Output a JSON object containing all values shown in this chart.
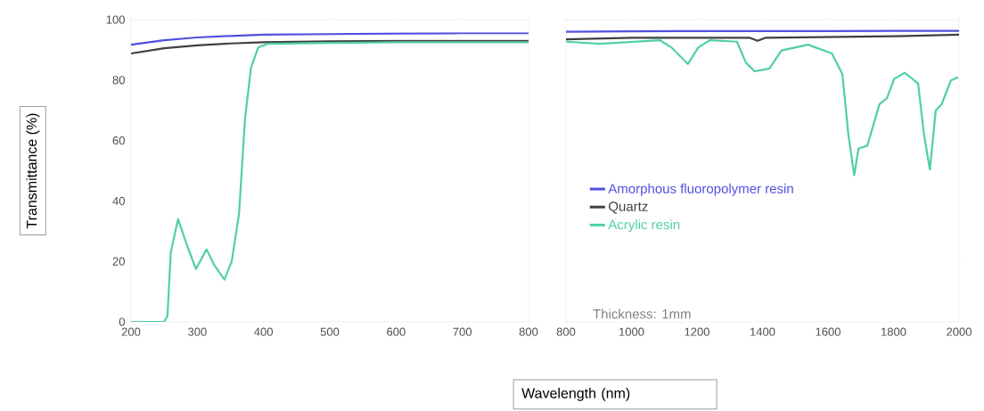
{
  "chart_data": [
    {
      "type": "line",
      "ylabel": "Transmittance (%)",
      "xlim": [
        200,
        800
      ],
      "ylim": [
        0,
        100
      ],
      "xticks": [
        200,
        300,
        400,
        500,
        600,
        700,
        800
      ],
      "yticks": [
        0,
        20,
        40,
        60,
        80,
        100
      ],
      "grid": false,
      "legend": false,
      "series": [
        {
          "color": "#5050e0",
          "x": [
            200,
            250,
            300,
            350,
            400,
            500,
            600,
            700,
            800
          ],
          "values": [
            91.7,
            93.2,
            94.1,
            94.6,
            95,
            95.2,
            95.4,
            95.5,
            95.5
          ]
        },
        {
          "color": "#404040",
          "x": [
            200,
            250,
            300,
            350,
            400,
            500,
            600,
            700,
            800
          ],
          "values": [
            88.8,
            90.5,
            91.5,
            92.1,
            92.5,
            92.8,
            93,
            93,
            93
          ]
        },
        {
          "color": "#50d0a0",
          "x": [
            200,
            250,
            255,
            260,
            271,
            285,
            298,
            314,
            325,
            341,
            352,
            363,
            372,
            381,
            392,
            406,
            500,
            600,
            700,
            800
          ],
          "values": [
            0,
            0,
            2,
            23,
            34,
            25,
            17.5,
            24,
            19,
            14,
            20,
            35.7,
            67,
            84,
            90.8,
            92,
            92.3,
            92.5,
            92.5,
            92.5
          ]
        }
      ]
    },
    {
      "type": "line",
      "xlabel": "Wavelength (nm)",
      "xlim": [
        800,
        2000
      ],
      "ylim": [
        0,
        100
      ],
      "xticks": [
        800,
        1000,
        1200,
        1400,
        1600,
        1800,
        2000
      ],
      "yticks": [
        {
          "value": 0,
          "label": null
        },
        {
          "value": 20,
          "label": null
        },
        {
          "value": 40,
          "label": null
        },
        {
          "value": 60,
          "label": null
        },
        {
          "value": 80,
          "label": null
        },
        {
          "value": 100,
          "label": null
        }
      ],
      "tick_labels": "x",
      "grid": false,
      "legend": "bottom left",
      "annotations": [
        "Thickness: 1mm"
      ],
      "series": [
        {
          "name": "Amorphous fluoropolymer resin",
          "color": "#5050e0",
          "x": [
            800,
            1000,
            1200,
            1400,
            1600,
            1800,
            2000
          ],
          "values": [
            96,
            96.1,
            96.2,
            96.2,
            96.2,
            96.3,
            96.3
          ]
        },
        {
          "name": "Quartz",
          "color": "#404040",
          "x": [
            800,
            1000,
            1360,
            1385,
            1410,
            1800,
            2000
          ],
          "values": [
            93.5,
            94,
            94,
            93,
            94,
            94.5,
            95
          ]
        },
        {
          "name": "Acrylic resin",
          "color": "#50d0a0",
          "x": [
            800,
            903,
            1086,
            1122,
            1172,
            1204,
            1240,
            1322,
            1349,
            1376,
            1421,
            1458,
            1539,
            1612,
            1644,
            1662,
            1680,
            1693,
            1720,
            1757,
            1780,
            1802,
            1834,
            1875,
            1893,
            1911,
            1929,
            1947,
            1975,
            1997
          ],
          "values": [
            92.7,
            92,
            93.2,
            90.8,
            85.3,
            90.8,
            93.2,
            92.7,
            85.8,
            82.9,
            83.8,
            89.8,
            91.7,
            88.8,
            81.9,
            62,
            48.5,
            57.3,
            58.3,
            72,
            74,
            80.4,
            82.4,
            78.9,
            62,
            50.4,
            70,
            72,
            79.9,
            81
          ]
        }
      ]
    }
  ]
}
